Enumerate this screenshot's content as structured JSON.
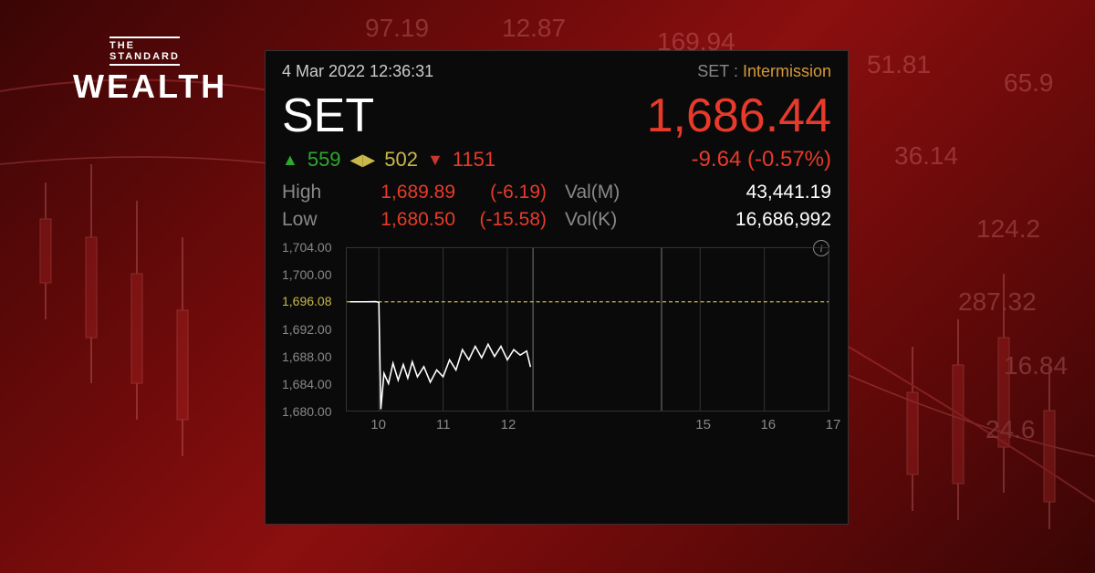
{
  "logo": {
    "top": "THE\nSTANDARD",
    "bottom": "WEALTH"
  },
  "panel": {
    "timestamp": "4 Mar 2022 12:36:31",
    "status_label": "SET :",
    "status_value": "Intermission",
    "symbol": "SET",
    "price": "1,686.44",
    "advancers": "559",
    "unchanged": "502",
    "decliners": "1151",
    "change": "-9.64 (-0.57%)",
    "high_label": "High",
    "high_value": "1,689.89",
    "high_change": "(-6.19)",
    "low_label": "Low",
    "low_value": "1,680.50",
    "low_change": "(-15.58)",
    "val_label": "Val(M)",
    "val_value": "43,441.19",
    "vol_label": "Vol(K)",
    "vol_value": "16,686,992"
  },
  "chart": {
    "type": "line",
    "y_min": 1680.0,
    "y_max": 1704.0,
    "y_ticks": [
      1704.0,
      1700.0,
      1696.08,
      1692.0,
      1688.0,
      1684.0,
      1680.0
    ],
    "y_tick_labels": [
      "1,704.00",
      "1,700.00",
      "1,696.08",
      "1,692.00",
      "1,688.00",
      "1,684.00",
      "1,680.00"
    ],
    "reference_line": 1696.08,
    "x_min": 9.5,
    "x_max": 17.0,
    "x_ticks": [
      10,
      11,
      12,
      15,
      16,
      17
    ],
    "x_tick_labels": [
      "10",
      "11",
      "12",
      "15",
      "16",
      "17"
    ],
    "session_breaks": [
      12.4,
      14.4
    ],
    "data": [
      [
        9.55,
        1696.08
      ],
      [
        9.8,
        1696.08
      ],
      [
        9.95,
        1696.1
      ],
      [
        10.0,
        1696.0
      ],
      [
        10.03,
        1680.2
      ],
      [
        10.08,
        1685.5
      ],
      [
        10.15,
        1684.0
      ],
      [
        10.22,
        1687.0
      ],
      [
        10.3,
        1684.5
      ],
      [
        10.38,
        1686.8
      ],
      [
        10.45,
        1684.8
      ],
      [
        10.52,
        1687.2
      ],
      [
        10.6,
        1685.0
      ],
      [
        10.7,
        1686.5
      ],
      [
        10.8,
        1684.2
      ],
      [
        10.9,
        1686.0
      ],
      [
        11.0,
        1685.0
      ],
      [
        11.1,
        1687.5
      ],
      [
        11.2,
        1686.0
      ],
      [
        11.3,
        1689.0
      ],
      [
        11.4,
        1687.5
      ],
      [
        11.5,
        1689.5
      ],
      [
        11.6,
        1687.8
      ],
      [
        11.7,
        1689.8
      ],
      [
        11.8,
        1688.0
      ],
      [
        11.9,
        1689.5
      ],
      [
        12.0,
        1687.5
      ],
      [
        12.1,
        1689.0
      ],
      [
        12.2,
        1688.2
      ],
      [
        12.3,
        1688.8
      ],
      [
        12.36,
        1686.44
      ]
    ],
    "colors": {
      "line": "#ffffff",
      "reference": "#c9b84a",
      "grid": "#333333",
      "background": "#0a0a0a",
      "axis_text": "#888888"
    },
    "line_width": 1.6
  },
  "theme": {
    "up_color": "#2ea82e",
    "down_color": "#e83a2a",
    "unchanged_color": "#c9b84a",
    "text_muted": "#888888",
    "text_white": "#ffffff",
    "panel_bg": "#0a0a0a"
  }
}
